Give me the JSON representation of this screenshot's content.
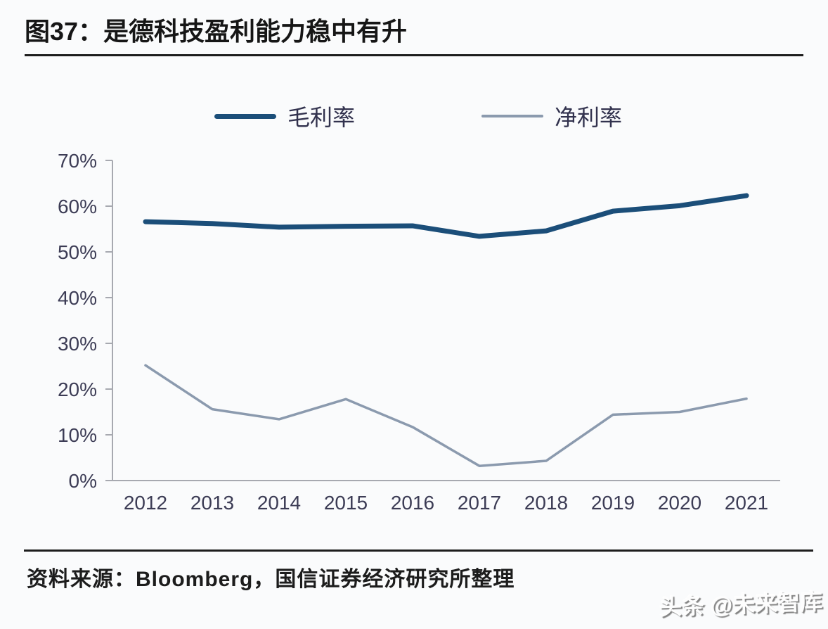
{
  "page": {
    "title": "图37：是德科技盈利能力稳中有升",
    "source": "资料来源：Bloomberg，国信证券经济研究所整理",
    "watermark": "头条 @未来智库"
  },
  "colors": {
    "gross_margin_line": "#1b4e79",
    "net_margin_line": "#8b9aae",
    "axis": "#a7a9b0",
    "tick_text": "#3c3c55",
    "title_text": "#161616"
  },
  "chart_data": {
    "type": "line",
    "title": "",
    "xlabel": "",
    "ylabel": "",
    "categories": [
      "2012",
      "2013",
      "2014",
      "2015",
      "2016",
      "2017",
      "2018",
      "2019",
      "2020",
      "2021"
    ],
    "series": [
      {
        "key": "gross-margin",
        "name": "毛利率",
        "color": "#1b4e79",
        "width": 7,
        "values": [
          56.6,
          56.2,
          55.4,
          55.6,
          55.7,
          53.4,
          54.6,
          58.9,
          60.1,
          62.3
        ]
      },
      {
        "key": "net-margin",
        "name": "净利率",
        "color": "#8b9aae",
        "width": 3.5,
        "values": [
          25.2,
          15.6,
          13.4,
          17.8,
          11.7,
          3.2,
          4.3,
          14.4,
          15.0,
          17.9
        ]
      }
    ],
    "yticks": [
      "0%",
      "10%",
      "20%",
      "30%",
      "40%",
      "50%",
      "60%",
      "70%"
    ],
    "ylim": [
      0,
      70
    ],
    "grid": false,
    "legend_position": "top"
  }
}
